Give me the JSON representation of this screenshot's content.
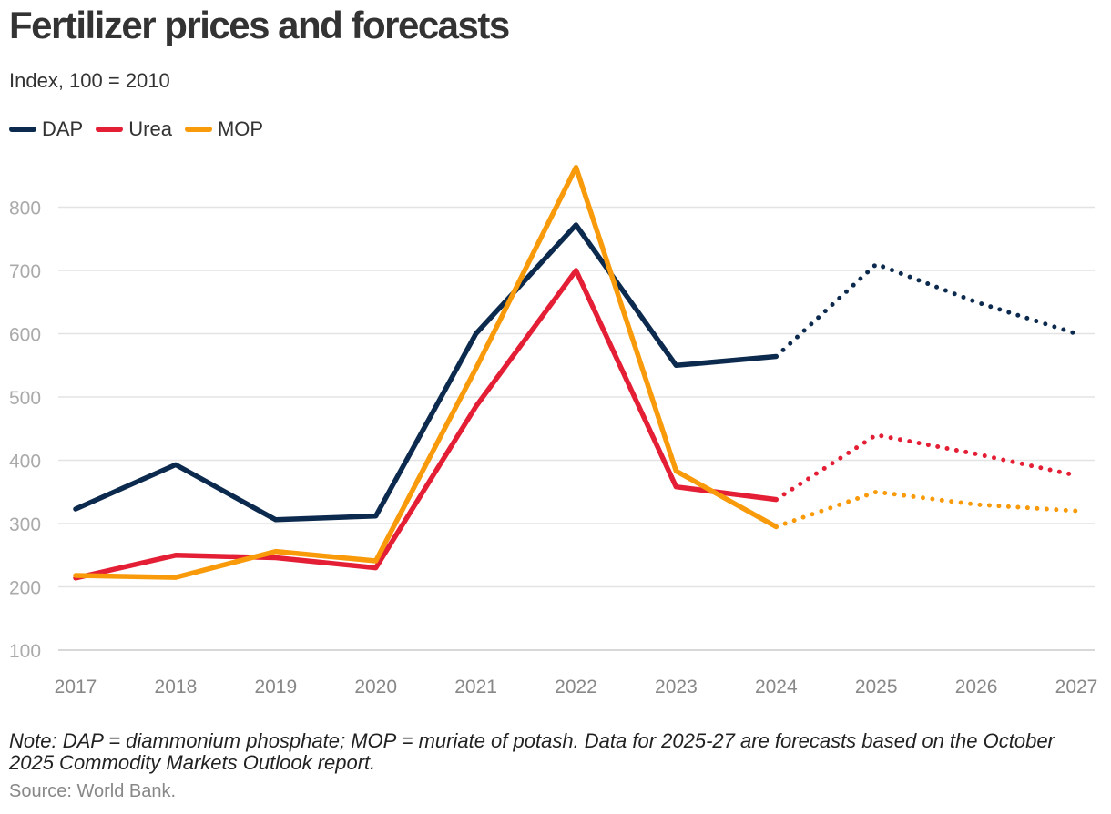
{
  "header": {
    "title": "Fertilizer prices and forecasts",
    "subtitle": "Index, 100 = 2010"
  },
  "footer": {
    "note": "Note: DAP = diammonium phosphate; MOP = muriate of potash. Data for 2025-27 are forecasts based on the October 2025 Commodity Markets Outlook report.",
    "source": "Source: World Bank."
  },
  "chart_data": {
    "type": "line",
    "title": "Fertilizer prices and forecasts",
    "subtitle": "Index, 100 = 2010",
    "xlabel": "",
    "ylabel": "",
    "x": [
      "2017",
      "2018",
      "2019",
      "2020",
      "2021",
      "2022",
      "2023",
      "2024",
      "2025",
      "2026",
      "2027"
    ],
    "ylim": [
      100,
      800
    ],
    "yticks": [
      100,
      200,
      300,
      400,
      500,
      600,
      700,
      800
    ],
    "grid": true,
    "legend_position": "top-left",
    "forecast_start": "2024",
    "forecast_style": "dotted",
    "series": [
      {
        "name": "DAP",
        "color": "#0c2a4e",
        "values": [
          323,
          393,
          306,
          312,
          600,
          772,
          550,
          564,
          710,
          650,
          600
        ]
      },
      {
        "name": "Urea",
        "color": "#e41f35",
        "values": [
          214,
          250,
          246,
          230,
          485,
          700,
          358,
          338,
          440,
          410,
          376
        ]
      },
      {
        "name": "MOP",
        "color": "#f89a09",
        "values": [
          218,
          215,
          256,
          241,
          545,
          863,
          383,
          295,
          350,
          330,
          320
        ]
      }
    ]
  }
}
